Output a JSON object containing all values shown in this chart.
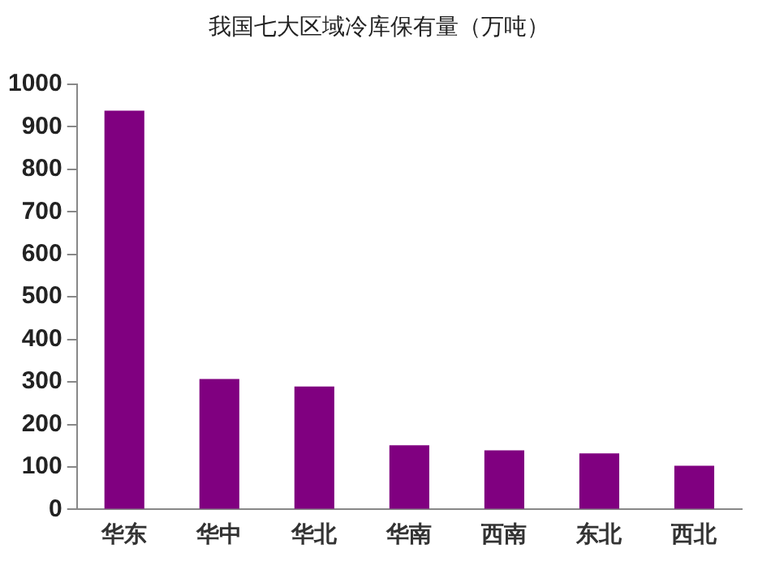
{
  "chart_data": {
    "type": "bar",
    "title": "我国七大区域冷库保有量（万吨）",
    "categories": [
      "华东",
      "华中",
      "华北",
      "华南",
      "西南",
      "东北",
      "西北"
    ],
    "values": [
      938,
      307,
      289,
      151,
      139,
      132,
      103
    ],
    "color": "#800080",
    "ylim": [
      0,
      1000
    ],
    "yticks": [
      0,
      100,
      200,
      300,
      400,
      500,
      600,
      700,
      800,
      900,
      1000
    ],
    "grid": false,
    "legend": false
  }
}
